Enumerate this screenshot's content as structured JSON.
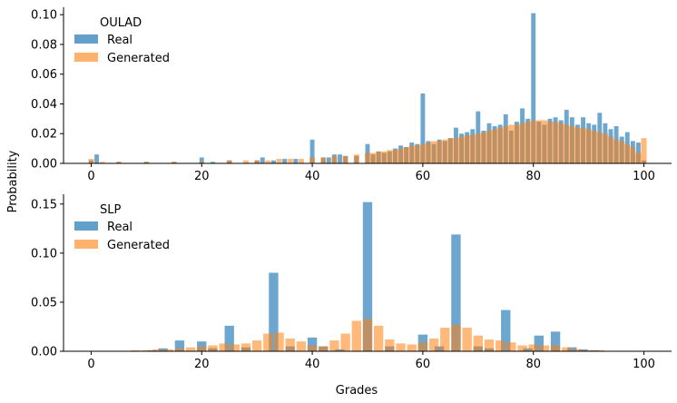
{
  "figure": {
    "ylabel": "Probability",
    "xlabel": "Grades"
  },
  "colors": {
    "real": "#1f77b4",
    "generated": "#ff7f0e"
  },
  "chart_data": [
    {
      "type": "histogram",
      "legend_title": "OULAD",
      "legend_placement": "top-left",
      "grid": false,
      "xlim": [
        -5,
        105
      ],
      "ylim": [
        0,
        0.105
      ],
      "xticks": [
        0,
        20,
        40,
        60,
        80,
        100
      ],
      "yticks": [
        0.0,
        0.02,
        0.04,
        0.06,
        0.08,
        0.1
      ],
      "ytick_labels": [
        "0.00",
        "0.02",
        "0.04",
        "0.06",
        "0.08",
        "0.10"
      ],
      "series": [
        {
          "name": "Real",
          "bin_width": 0.8,
          "points": [
            [
              0,
              0.002
            ],
            [
              1,
              0.006
            ],
            [
              5,
              0.001
            ],
            [
              10,
              0.001
            ],
            [
              15,
              0.001
            ],
            [
              20,
              0.004
            ],
            [
              22,
              0.001
            ],
            [
              25,
              0.002
            ],
            [
              30,
              0.002
            ],
            [
              31,
              0.004
            ],
            [
              33,
              0.002
            ],
            [
              35,
              0.003
            ],
            [
              37,
              0.003
            ],
            [
              40,
              0.016
            ],
            [
              42,
              0.004
            ],
            [
              43,
              0.004
            ],
            [
              44,
              0.006
            ],
            [
              45,
              0.006
            ],
            [
              46,
              0.005
            ],
            [
              48,
              0.005
            ],
            [
              50,
              0.013
            ],
            [
              51,
              0.006
            ],
            [
              52,
              0.008
            ],
            [
              53,
              0.007
            ],
            [
              54,
              0.008
            ],
            [
              55,
              0.01
            ],
            [
              56,
              0.012
            ],
            [
              57,
              0.011
            ],
            [
              58,
              0.014
            ],
            [
              59,
              0.013
            ],
            [
              60,
              0.047
            ],
            [
              61,
              0.015
            ],
            [
              62,
              0.013
            ],
            [
              63,
              0.016
            ],
            [
              64,
              0.015
            ],
            [
              65,
              0.017
            ],
            [
              66,
              0.024
            ],
            [
              67,
              0.02
            ],
            [
              68,
              0.021
            ],
            [
              69,
              0.023
            ],
            [
              70,
              0.035
            ],
            [
              71,
              0.022
            ],
            [
              72,
              0.027
            ],
            [
              73,
              0.025
            ],
            [
              74,
              0.026
            ],
            [
              75,
              0.033
            ],
            [
              76,
              0.022
            ],
            [
              77,
              0.028
            ],
            [
              78,
              0.037
            ],
            [
              79,
              0.03
            ],
            [
              80,
              0.101
            ],
            [
              81,
              0.028
            ],
            [
              82,
              0.026
            ],
            [
              83,
              0.03
            ],
            [
              84,
              0.031
            ],
            [
              85,
              0.029
            ],
            [
              86,
              0.036
            ],
            [
              87,
              0.031
            ],
            [
              88,
              0.026
            ],
            [
              89,
              0.031
            ],
            [
              90,
              0.027
            ],
            [
              91,
              0.026
            ],
            [
              92,
              0.034
            ],
            [
              93,
              0.027
            ],
            [
              94,
              0.023
            ],
            [
              95,
              0.025
            ],
            [
              96,
              0.018
            ],
            [
              97,
              0.021
            ],
            [
              98,
              0.015
            ],
            [
              99,
              0.014
            ],
            [
              100,
              0.002
            ]
          ]
        },
        {
          "name": "Generated",
          "bin_width": 1.0,
          "points": [
            [
              0,
              0.003
            ],
            [
              2,
              0.001
            ],
            [
              5,
              0.001
            ],
            [
              10,
              0.001
            ],
            [
              15,
              0.001
            ],
            [
              20,
              0.001
            ],
            [
              25,
              0.002
            ],
            [
              28,
              0.002
            ],
            [
              30,
              0.002
            ],
            [
              32,
              0.002
            ],
            [
              34,
              0.003
            ],
            [
              36,
              0.003
            ],
            [
              38,
              0.003
            ],
            [
              40,
              0.004
            ],
            [
              42,
              0.004
            ],
            [
              44,
              0.005
            ],
            [
              46,
              0.005
            ],
            [
              48,
              0.006
            ],
            [
              50,
              0.007
            ],
            [
              51,
              0.007
            ],
            [
              52,
              0.008
            ],
            [
              53,
              0.008
            ],
            [
              54,
              0.009
            ],
            [
              55,
              0.009
            ],
            [
              56,
              0.01
            ],
            [
              57,
              0.011
            ],
            [
              58,
              0.012
            ],
            [
              59,
              0.012
            ],
            [
              60,
              0.013
            ],
            [
              61,
              0.014
            ],
            [
              62,
              0.015
            ],
            [
              63,
              0.015
            ],
            [
              64,
              0.016
            ],
            [
              65,
              0.017
            ],
            [
              66,
              0.017
            ],
            [
              67,
              0.018
            ],
            [
              68,
              0.019
            ],
            [
              69,
              0.019
            ],
            [
              70,
              0.02
            ],
            [
              71,
              0.021
            ],
            [
              72,
              0.022
            ],
            [
              73,
              0.023
            ],
            [
              74,
              0.024
            ],
            [
              75,
              0.025
            ],
            [
              76,
              0.026
            ],
            [
              77,
              0.026
            ],
            [
              78,
              0.027
            ],
            [
              79,
              0.028
            ],
            [
              80,
              0.029
            ],
            [
              81,
              0.029
            ],
            [
              82,
              0.029
            ],
            [
              83,
              0.028
            ],
            [
              84,
              0.028
            ],
            [
              85,
              0.027
            ],
            [
              86,
              0.026
            ],
            [
              87,
              0.025
            ],
            [
              88,
              0.024
            ],
            [
              89,
              0.024
            ],
            [
              90,
              0.023
            ],
            [
              91,
              0.022
            ],
            [
              92,
              0.021
            ],
            [
              93,
              0.02
            ],
            [
              94,
              0.018
            ],
            [
              95,
              0.016
            ],
            [
              96,
              0.015
            ],
            [
              97,
              0.013
            ],
            [
              98,
              0.011
            ],
            [
              99,
              0.007
            ],
            [
              100,
              0.017
            ]
          ]
        }
      ]
    },
    {
      "type": "histogram",
      "legend_title": "SLP",
      "legend_placement": "top-left",
      "grid": false,
      "xlim": [
        -5,
        105
      ],
      "ylim": [
        0,
        0.16
      ],
      "xticks": [
        0,
        20,
        40,
        60,
        80,
        100
      ],
      "yticks": [
        0.0,
        0.05,
        0.1,
        0.15
      ],
      "ytick_labels": [
        "0.00",
        "0.05",
        "0.10",
        "0.15"
      ],
      "series": [
        {
          "name": "Real",
          "bin_width": 1.7,
          "points": [
            [
              11,
              0.001
            ],
            [
              13,
              0.003
            ],
            [
              16,
              0.011
            ],
            [
              20,
              0.01
            ],
            [
              22,
              0.003
            ],
            [
              25,
              0.026
            ],
            [
              28,
              0.004
            ],
            [
              33,
              0.08
            ],
            [
              36,
              0.005
            ],
            [
              40,
              0.014
            ],
            [
              42,
              0.005
            ],
            [
              45,
              0.002
            ],
            [
              50,
              0.152
            ],
            [
              54,
              0.005
            ],
            [
              60,
              0.017
            ],
            [
              63,
              0.005
            ],
            [
              66,
              0.119
            ],
            [
              70,
              0.005
            ],
            [
              72,
              0.003
            ],
            [
              75,
              0.042
            ],
            [
              79,
              0.003
            ],
            [
              81,
              0.016
            ],
            [
              84,
              0.02
            ],
            [
              87,
              0.004
            ],
            [
              89,
              0.002
            ],
            [
              91,
              0.001
            ]
          ]
        },
        {
          "name": "Generated",
          "bin_width": 1.7,
          "points": [
            [
              8,
              0.001
            ],
            [
              10,
              0.001
            ],
            [
              12,
              0.002
            ],
            [
              14,
              0.002
            ],
            [
              16,
              0.003
            ],
            [
              18,
              0.004
            ],
            [
              20,
              0.005
            ],
            [
              22,
              0.006
            ],
            [
              24,
              0.008
            ],
            [
              26,
              0.007
            ],
            [
              28,
              0.008
            ],
            [
              30,
              0.011
            ],
            [
              32,
              0.018
            ],
            [
              34,
              0.019
            ],
            [
              36,
              0.013
            ],
            [
              38,
              0.01
            ],
            [
              40,
              0.006
            ],
            [
              42,
              0.005
            ],
            [
              44,
              0.011
            ],
            [
              46,
              0.018
            ],
            [
              48,
              0.031
            ],
            [
              50,
              0.033
            ],
            [
              52,
              0.026
            ],
            [
              54,
              0.012
            ],
            [
              56,
              0.008
            ],
            [
              58,
              0.007
            ],
            [
              60,
              0.009
            ],
            [
              62,
              0.013
            ],
            [
              64,
              0.024
            ],
            [
              66,
              0.027
            ],
            [
              68,
              0.024
            ],
            [
              70,
              0.016
            ],
            [
              72,
              0.012
            ],
            [
              74,
              0.011
            ],
            [
              76,
              0.009
            ],
            [
              78,
              0.006
            ],
            [
              80,
              0.007
            ],
            [
              82,
              0.006
            ],
            [
              84,
              0.006
            ],
            [
              86,
              0.004
            ],
            [
              88,
              0.002
            ],
            [
              90,
              0.001
            ],
            [
              92,
              0.001
            ]
          ]
        }
      ]
    }
  ]
}
